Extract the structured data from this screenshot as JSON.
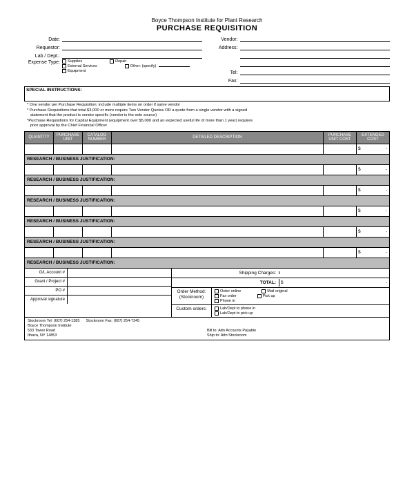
{
  "header": {
    "org": "Boyce Thompson Institute for Plant Research",
    "title": "PURCHASE REQUISITION"
  },
  "fields": {
    "date": "Date:",
    "requestor": "Requestor:",
    "lab_dept": "Lab / Dept.:",
    "expense_type": "Expense Type:",
    "vendor": "Vendor:",
    "address": "Address:",
    "tel": "Tel:",
    "fax": "Fax:"
  },
  "expense_checks": {
    "supplies": "Supplies",
    "external": "External Services",
    "equipment": "Equipment",
    "repair": "Repair",
    "other": "Other: (specify)"
  },
  "special": "SPECIAL INSTRUCTIONS:",
  "notes": {
    "n1": "* One vendor per Purchase Requisition; include multiple items on order if same vendor",
    "n2": "* Purchase Requisitions that total $3,000 or more require Two Vendor Quotes OR a quote from a single vendor with a signed",
    "n2b": "   statement that the product is vendor specific (vendor is the sole source)",
    "n3": "*Purchase Requisitions for Capital Equipment (equipment over $5,000 and an expected useful life of more than 1 year) requires",
    "n3b": "   prior approval by the Chief Financial Officer"
  },
  "table": {
    "headers": {
      "qty": "QUANTITY",
      "unit": "PURCHASE UNIT",
      "cat": "CATALOG NUMBER",
      "desc": "DETAILED DESCRIPTION",
      "ucost": "PURCHASE UNIT COST",
      "ecost": "EXTENDED COST"
    },
    "justification": "RESEARCH / BUSINESS JUSTIFICATION:",
    "dollar": "$"
  },
  "bottom": {
    "gl": "G/L Account #",
    "grant": "Grant / Project #",
    "po": "PO #",
    "approval": "Approval signature",
    "shipping": "Shipping Charges:",
    "total": "TOTAL:",
    "order_method": "Order Method: (Stockroom)",
    "custom_orders": "Custom orders:"
  },
  "order_checks": {
    "online": "Order online",
    "fax": "Fax order",
    "phone": "Phone in",
    "mail": "Mail original",
    "pickup": "Pick up",
    "dept_phone": "Lab/Dept to phone in",
    "dept_pickup": "Lab/Dept to pick up"
  },
  "footer": {
    "tel": "Stockroom Tel: (607) 254-1385",
    "fax": "Stockroom Fax: (607) 254-7345",
    "name": "Boyce Thompson Institute",
    "addr1": "533 Tower Road",
    "addr2": "Ithaca, NY 14853",
    "bill": "Bill to: Attn Accounts Payable",
    "ship": "Ship to: Attn Stockroom"
  }
}
